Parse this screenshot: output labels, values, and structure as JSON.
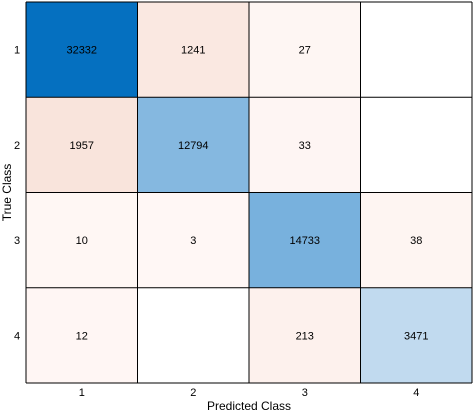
{
  "chart_data": {
    "type": "heatmap",
    "xlabel": "Predicted Class",
    "ylabel": "True Class",
    "x_categories": [
      "1",
      "2",
      "3",
      "4"
    ],
    "y_categories": [
      "1",
      "2",
      "3",
      "4"
    ],
    "values": [
      [
        32332,
        1241,
        27,
        0
      ],
      [
        1957,
        12794,
        33,
        0
      ],
      [
        10,
        3,
        14733,
        38
      ],
      [
        12,
        0,
        213,
        3471
      ]
    ],
    "shown_labels": [
      [
        "32332",
        "1241",
        "27",
        ""
      ],
      [
        "1957",
        "12794",
        "33",
        ""
      ],
      [
        "10",
        "3",
        "14733",
        "38"
      ],
      [
        "12",
        "",
        "213",
        "3471"
      ]
    ],
    "colors": {
      "diagonal_scale": [
        "#d8e7f5",
        "#0570c0"
      ],
      "off_diagonal_scale": [
        "#fff8f6",
        "#f9e4dc"
      ],
      "empty": "#ffffff",
      "grid": "#000000"
    }
  }
}
